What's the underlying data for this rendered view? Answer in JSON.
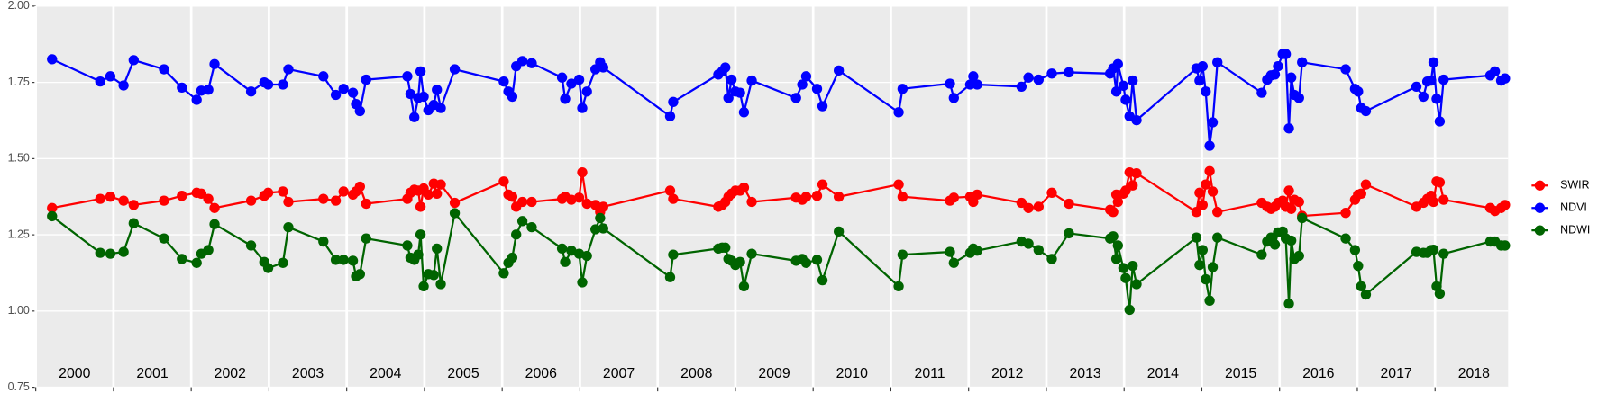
{
  "chart_data": {
    "type": "line",
    "x": [
      2000.21,
      2000.83,
      2000.96,
      2001.13,
      2001.26,
      2001.65,
      2001.88,
      2002.07,
      2002.13,
      2002.22,
      2002.3,
      2002.77,
      2002.94,
      2002.99,
      2003.18,
      2003.25,
      2003.7,
      2003.86,
      2003.96,
      2004.08,
      2004.12,
      2004.17,
      2004.25,
      2004.78,
      2004.82,
      2004.87,
      2004.92,
      2004.95,
      2004.99,
      2005.05,
      2005.12,
      2005.16,
      2005.21,
      2005.39,
      2006.02,
      2006.08,
      2006.13,
      2006.18,
      2006.26,
      2006.38,
      2006.77,
      2006.81,
      2006.89,
      2006.99,
      2007.03,
      2007.09,
      2007.2,
      2007.26,
      2007.3,
      2008.16,
      2008.2,
      2008.78,
      2008.83,
      2008.87,
      2008.91,
      2008.95,
      2009.0,
      2009.06,
      2009.11,
      2009.21,
      2009.78,
      2009.86,
      2009.91,
      2010.05,
      2010.12,
      2010.33,
      2011.1,
      2011.15,
      2011.76,
      2011.81,
      2012.02,
      2012.06,
      2012.11,
      2012.68,
      2012.77,
      2012.9,
      2013.07,
      2013.29,
      2013.82,
      2013.86,
      2013.9,
      2013.92,
      2013.99,
      2014.02,
      2014.07,
      2014.11,
      2014.16,
      2014.93,
      2014.97,
      2015.01,
      2015.05,
      2015.1,
      2015.14,
      2015.2,
      2015.77,
      2015.84,
      2015.89,
      2015.94,
      2015.98,
      2016.04,
      2016.08,
      2016.12,
      2016.15,
      2016.19,
      2016.25,
      2016.29,
      2016.85,
      2016.97,
      2017.01,
      2017.05,
      2017.11,
      2017.76,
      2017.85,
      2017.9,
      2017.95,
      2017.98,
      2018.02,
      2018.06,
      2018.11,
      2018.71,
      2018.77,
      2018.85,
      2018.9
    ],
    "series": [
      {
        "name": "SWIR",
        "color": "#ff0000",
        "values": [
          1.338,
          1.368,
          1.375,
          1.362,
          1.348,
          1.362,
          1.378,
          1.388,
          1.385,
          1.368,
          1.338,
          1.362,
          1.378,
          1.388,
          1.392,
          1.358,
          1.368,
          1.362,
          1.392,
          1.382,
          1.392,
          1.408,
          1.352,
          1.368,
          1.388,
          1.398,
          1.395,
          1.342,
          1.402,
          1.382,
          1.418,
          1.385,
          1.415,
          1.355,
          1.425,
          1.382,
          1.375,
          1.342,
          1.358,
          1.358,
          1.368,
          1.375,
          1.365,
          1.372,
          1.455,
          1.352,
          1.348,
          1.325,
          1.342,
          1.395,
          1.368,
          1.342,
          1.348,
          1.358,
          1.375,
          1.385,
          1.395,
          1.395,
          1.405,
          1.358,
          1.372,
          1.365,
          1.375,
          1.378,
          1.415,
          1.375,
          1.415,
          1.375,
          1.362,
          1.372,
          1.375,
          1.358,
          1.382,
          1.355,
          1.338,
          1.342,
          1.388,
          1.352,
          1.332,
          1.325,
          1.382,
          1.358,
          1.385,
          1.395,
          1.455,
          1.412,
          1.452,
          1.325,
          1.388,
          1.348,
          1.415,
          1.459,
          1.392,
          1.325,
          1.355,
          1.342,
          1.335,
          1.342,
          1.355,
          1.362,
          1.342,
          1.395,
          1.335,
          1.365,
          1.358,
          1.312,
          1.322,
          1.365,
          1.382,
          1.385,
          1.415,
          1.342,
          1.355,
          1.368,
          1.378,
          1.358,
          1.425,
          1.422,
          1.365,
          1.338,
          1.328,
          1.338,
          1.348
        ]
      },
      {
        "name": "NDVI",
        "color": "#0000ff",
        "values": [
          1.826,
          1.753,
          1.77,
          1.74,
          1.823,
          1.793,
          1.733,
          1.693,
          1.723,
          1.726,
          1.81,
          1.72,
          1.75,
          1.743,
          1.743,
          1.793,
          1.77,
          1.709,
          1.729,
          1.716,
          1.679,
          1.656,
          1.759,
          1.77,
          1.712,
          1.636,
          1.699,
          1.786,
          1.703,
          1.659,
          1.676,
          1.726,
          1.666,
          1.793,
          1.753,
          1.72,
          1.703,
          1.803,
          1.82,
          1.813,
          1.766,
          1.696,
          1.746,
          1.759,
          1.666,
          1.72,
          1.793,
          1.816,
          1.799,
          1.639,
          1.686,
          1.776,
          1.786,
          1.799,
          1.699,
          1.759,
          1.72,
          1.716,
          1.652,
          1.756,
          1.699,
          1.743,
          1.77,
          1.729,
          1.672,
          1.789,
          1.652,
          1.729,
          1.746,
          1.699,
          1.743,
          1.77,
          1.743,
          1.736,
          1.766,
          1.759,
          1.779,
          1.783,
          1.779,
          1.796,
          1.72,
          1.81,
          1.739,
          1.693,
          1.639,
          1.756,
          1.626,
          1.796,
          1.756,
          1.803,
          1.72,
          1.542,
          1.619,
          1.816,
          1.716,
          1.759,
          1.773,
          1.776,
          1.803,
          1.843,
          1.843,
          1.599,
          1.766,
          1.709,
          1.699,
          1.816,
          1.793,
          1.729,
          1.72,
          1.666,
          1.656,
          1.736,
          1.703,
          1.753,
          1.756,
          1.816,
          1.696,
          1.622,
          1.759,
          1.773,
          1.786,
          1.756,
          1.763
        ]
      },
      {
        "name": "NDWI",
        "color": "#006400",
        "values": [
          1.311,
          1.191,
          1.188,
          1.194,
          1.288,
          1.238,
          1.171,
          1.158,
          1.188,
          1.2,
          1.285,
          1.215,
          1.161,
          1.141,
          1.158,
          1.275,
          1.228,
          1.168,
          1.168,
          1.165,
          1.114,
          1.121,
          1.238,
          1.215,
          1.175,
          1.168,
          1.185,
          1.251,
          1.081,
          1.121,
          1.118,
          1.205,
          1.088,
          1.321,
          1.124,
          1.158,
          1.175,
          1.251,
          1.295,
          1.275,
          1.205,
          1.161,
          1.198,
          1.188,
          1.094,
          1.181,
          1.268,
          1.305,
          1.271,
          1.111,
          1.185,
          1.205,
          1.208,
          1.208,
          1.171,
          1.165,
          1.151,
          1.161,
          1.081,
          1.188,
          1.165,
          1.171,
          1.158,
          1.168,
          1.101,
          1.261,
          1.081,
          1.185,
          1.194,
          1.158,
          1.191,
          1.205,
          1.198,
          1.228,
          1.221,
          1.2,
          1.171,
          1.255,
          1.238,
          1.245,
          1.171,
          1.215,
          1.141,
          1.108,
          1.004,
          1.148,
          1.088,
          1.241,
          1.151,
          1.2,
          1.104,
          1.034,
          1.144,
          1.241,
          1.185,
          1.228,
          1.241,
          1.218,
          1.258,
          1.261,
          1.238,
          1.024,
          1.231,
          1.171,
          1.181,
          1.305,
          1.238,
          1.2,
          1.148,
          1.081,
          1.054,
          1.194,
          1.191,
          1.191,
          1.2,
          1.201,
          1.081,
          1.057,
          1.188,
          1.228,
          1.228,
          1.215,
          1.215
        ]
      }
    ],
    "xlim": [
      2000,
      2018.94
    ],
    "xticks": [
      2000,
      2001,
      2002,
      2003,
      2004,
      2005,
      2006,
      2007,
      2008,
      2009,
      2010,
      2011,
      2012,
      2013,
      2014,
      2015,
      2016,
      2017,
      2018
    ],
    "ylim": [
      0.75,
      2.0
    ],
    "yticks": [
      0.75,
      {
        "value": 1.0,
        "label": "1.00"
      },
      1.25,
      {
        "value": 1.5,
        "label": "1.50"
      },
      1.75,
      {
        "value": 2.0,
        "label": "2.00"
      }
    ],
    "grid": true,
    "legend": "right"
  }
}
